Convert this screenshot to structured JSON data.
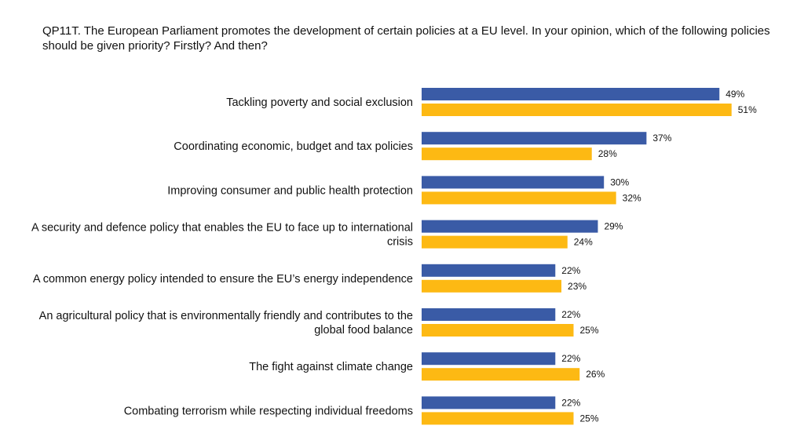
{
  "title": "QP11T. The European Parliament promotes the development of certain policies at a EU level. In your opinion, which of the following policies should be given priority? Firstly? And then?",
  "colors": {
    "series_1": "#3A5BA6",
    "series_2": "#FDB913"
  },
  "chart_data": {
    "type": "bar",
    "orientation": "horizontal",
    "title": "QP11T. The European Parliament promotes the development of certain policies at a EU level. In your opinion, which of the following policies should be given priority? Firstly? And then?",
    "xlabel": "",
    "ylabel": "",
    "xlim": [
      0,
      51
    ],
    "grid": false,
    "categories": [
      "Tackling poverty and social exclusion",
      "Coordinating economic, budget and tax policies",
      "Improving consumer and public health protection",
      "A security and defence policy that enables the EU to face up to international crisis",
      "A common energy policy intended to ensure the EU’s energy independence",
      "An agricultural policy that is environmentally friendly and contributes to the global food balance",
      "The fight against climate change",
      "Combating terrorism while respecting individual freedoms"
    ],
    "category_lines": [
      [
        "Tackling poverty and social exclusion"
      ],
      [
        "Coordinating economic, budget and tax policies"
      ],
      [
        "Improving consumer and public health protection"
      ],
      [
        "A security and defence policy that enables the EU to face up to international",
        "crisis"
      ],
      [
        "A common energy policy intended to ensure the EU’s energy independence"
      ],
      [
        "An agricultural policy that is environmentally friendly and contributes to the",
        "global food balance"
      ],
      [
        "The fight against climate change"
      ],
      [
        "Combating terrorism while respecting individual freedoms"
      ]
    ],
    "series": [
      {
        "name": "Series 1",
        "values": [
          49,
          37,
          30,
          29,
          22,
          22,
          22,
          22
        ],
        "labels": [
          "49%",
          "37%",
          "30%",
          "29%",
          "22%",
          "22%",
          "22%",
          "22%"
        ]
      },
      {
        "name": "Series 2",
        "values": [
          51,
          28,
          32,
          24,
          23,
          25,
          26,
          25
        ],
        "labels": [
          "51%",
          "28%",
          "32%",
          "24%",
          "23%",
          "25%",
          "26%",
          "25%"
        ]
      }
    ]
  }
}
